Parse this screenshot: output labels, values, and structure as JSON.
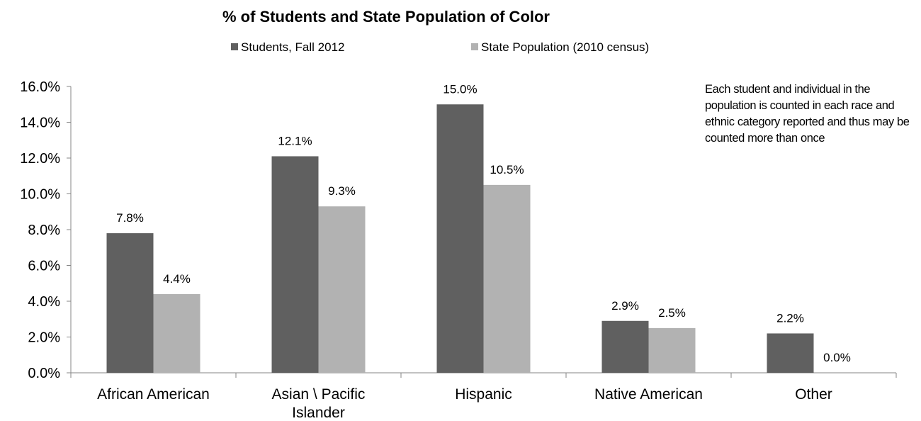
{
  "chart_data": {
    "type": "bar",
    "title": "% of Students and State Population  of Color",
    "categories": [
      "African American",
      "Asian \\ Pacific Islander",
      "Hispanic",
      "Native American",
      "Other"
    ],
    "category_lines": [
      [
        "African American"
      ],
      [
        "Asian \\ Pacific",
        "Islander"
      ],
      [
        "Hispanic"
      ],
      [
        "Native American"
      ],
      [
        "Other"
      ]
    ],
    "series": [
      {
        "name": "Students, Fall 2012",
        "values": [
          7.8,
          12.1,
          15.0,
          2.9,
          2.2
        ],
        "labels": [
          "7.8%",
          "12.1%",
          "15.0%",
          "2.9%",
          "2.2%"
        ],
        "color": "#606060"
      },
      {
        "name": "State Population (2010 census)",
        "values": [
          4.4,
          9.3,
          10.5,
          2.5,
          0.0
        ],
        "labels": [
          "4.4%",
          "9.3%",
          "10.5%",
          "2.5%",
          "0.0%"
        ],
        "color": "#b2b2b2"
      }
    ],
    "ylim": [
      0,
      16
    ],
    "yticks": [
      "0.0%",
      "2.0%",
      "4.0%",
      "6.0%",
      "8.0%",
      "10.0%",
      "12.0%",
      "14.0%",
      "16.0%"
    ],
    "xlabel": "",
    "ylabel": "",
    "legend_position": "top",
    "grid": false,
    "annotation": "Each student and individual in the population is counted in each race and ethnic category reported and thus may be counted more than once"
  }
}
